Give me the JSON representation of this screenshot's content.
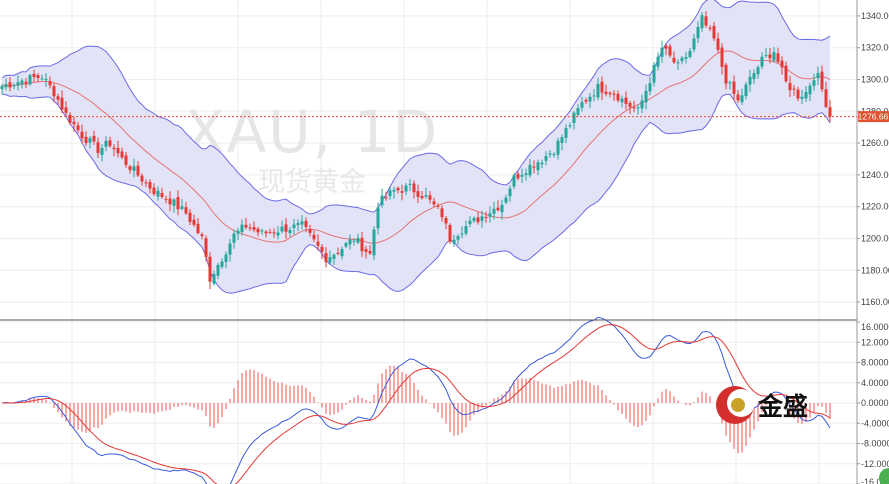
{
  "watermark": {
    "symbol": "XAU, 1D",
    "name": "现货黄金"
  },
  "logo": {
    "text": "金盛"
  },
  "colors": {
    "up": "#26a69a",
    "down": "#e53935",
    "band_fill": "#e3e3f7",
    "band_line": "#6a6ae8",
    "mid_line": "#e57373",
    "macd_line": "#3b5bdb",
    "signal_line": "#e53935",
    "hist": "#ef5350",
    "grid": "#eeeeee",
    "last_price": "#e2512f"
  },
  "chart_data": [
    {
      "type": "candlestick",
      "panel": "price",
      "indicators": [
        "Bollinger Bands"
      ],
      "ylim": [
        1150,
        1350
      ],
      "y_ticks": [
        "1160.00",
        "1180.00",
        "1200.00",
        "1220.00",
        "1240.00",
        "1260.00",
        "1280.00",
        "1300.00",
        "1320.00",
        "1340.00"
      ],
      "last_price": "1276.66",
      "last_value": 1276.66,
      "anchors": [
        [
          0,
          1296
        ],
        [
          12,
          1300
        ],
        [
          20,
          1302
        ],
        [
          26,
          1292
        ],
        [
          32,
          1278
        ],
        [
          40,
          1265
        ],
        [
          48,
          1256
        ],
        [
          54,
          1260
        ],
        [
          60,
          1250
        ],
        [
          68,
          1240
        ],
        [
          76,
          1230
        ],
        [
          84,
          1224
        ],
        [
          92,
          1216
        ],
        [
          100,
          1200
        ],
        [
          104,
          1175
        ],
        [
          110,
          1188
        ],
        [
          116,
          1202
        ],
        [
          122,
          1208
        ],
        [
          130,
          1203
        ],
        [
          140,
          1206
        ],
        [
          150,
          1208
        ],
        [
          156,
          1198
        ],
        [
          162,
          1188
        ],
        [
          168,
          1192
        ],
        [
          176,
          1200
        ],
        [
          184,
          1190
        ],
        [
          188,
          1222
        ],
        [
          196,
          1230
        ],
        [
          204,
          1232
        ],
        [
          212,
          1226
        ],
        [
          220,
          1215
        ],
        [
          224,
          1200
        ],
        [
          230,
          1206
        ],
        [
          240,
          1214
        ],
        [
          250,
          1222
        ],
        [
          256,
          1238
        ],
        [
          262,
          1244
        ],
        [
          270,
          1250
        ],
        [
          276,
          1256
        ],
        [
          282,
          1268
        ],
        [
          290,
          1285
        ],
        [
          298,
          1295
        ],
        [
          306,
          1292
        ],
        [
          312,
          1285
        ],
        [
          318,
          1280
        ],
        [
          324,
          1300
        ],
        [
          330,
          1320
        ],
        [
          338,
          1308
        ],
        [
          344,
          1318
        ],
        [
          350,
          1338
        ],
        [
          356,
          1325
        ],
        [
          362,
          1300
        ],
        [
          368,
          1286
        ],
        [
          374,
          1300
        ],
        [
          380,
          1312
        ],
        [
          386,
          1318
        ],
        [
          392,
          1298
        ],
        [
          398,
          1290
        ],
        [
          402,
          1292
        ],
        [
          407,
          1305
        ],
        [
          411,
          1290
        ],
        [
          414,
          1276.66
        ]
      ],
      "bollinger_period": 20,
      "bollinger_width": 2
    },
    {
      "type": "macd",
      "panel": "indicator",
      "series": [
        "MACD",
        "Signal",
        "Histogram"
      ],
      "ylim": [
        -16,
        16
      ],
      "y_ticks": [
        "-16.00",
        "-12.0000",
        "-8.0000",
        "-4.0000",
        "0.0000",
        "4.0000",
        "8.0000",
        "12.0000",
        "16.0000"
      ]
    }
  ]
}
